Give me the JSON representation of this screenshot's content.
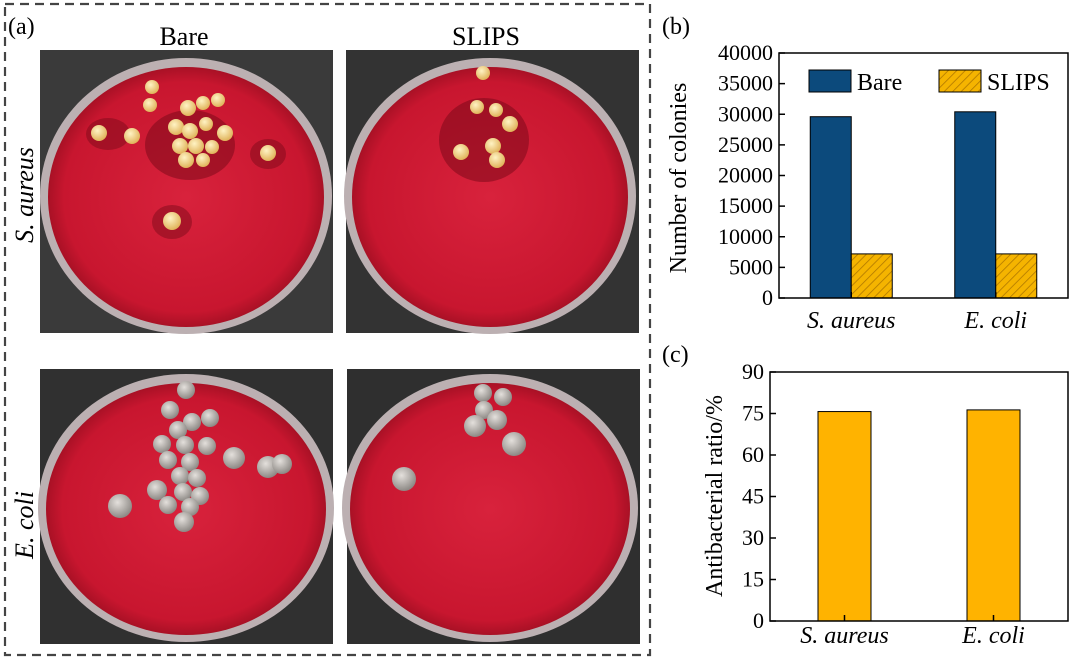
{
  "panels": {
    "a": {
      "label": "(a)",
      "column_labels": [
        "Bare",
        "SLIPS"
      ],
      "row_labels": [
        "S. aureus",
        "E. coli"
      ],
      "plate_color": "#d41a35"
    },
    "b": {
      "label": "(b)"
    },
    "c": {
      "label": "(c)"
    }
  },
  "chart_data": [
    {
      "type": "bar",
      "categories": [
        "S. aureus",
        "E. coli"
      ],
      "series": [
        {
          "name": "Bare",
          "values": [
            29600,
            30400
          ],
          "color": "#0c4a7c",
          "pattern": "solid"
        },
        {
          "name": "SLIPS",
          "values": [
            7200,
            7200
          ],
          "color": "#f5b400",
          "pattern": "hatch"
        }
      ],
      "xlabel": "",
      "ylabel": "Number of colonies",
      "ylim": [
        0,
        40000
      ],
      "yticks": [
        0,
        5000,
        10000,
        15000,
        20000,
        25000,
        30000,
        35000,
        40000
      ],
      "legend": "top",
      "grid": false
    },
    {
      "type": "bar",
      "categories": [
        "S. aureus",
        "E. coli"
      ],
      "series": [
        {
          "values": [
            75.7,
            76.3
          ],
          "color": "#ffb300",
          "pattern": "solid"
        }
      ],
      "xlabel": "",
      "ylabel": "Antibacterial ratio/%",
      "ylim": [
        0,
        90
      ],
      "yticks": [
        0,
        15,
        30,
        45,
        60,
        75,
        90
      ],
      "grid": false
    }
  ]
}
